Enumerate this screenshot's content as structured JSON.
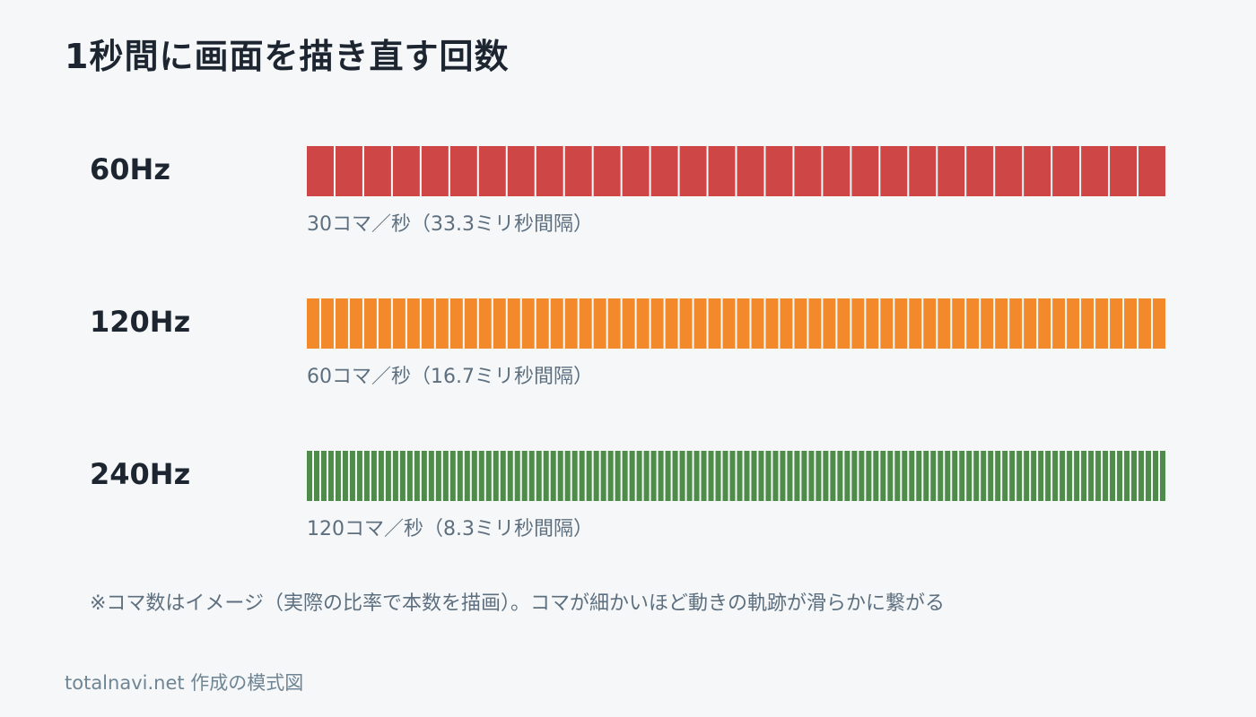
{
  "title": "1秒間に画面を描き直す回数",
  "rows": [
    {
      "label": "60Hz",
      "frames": 30,
      "color": "#cf4647",
      "caption": "30コマ／秒（33.3ミリ秒間隔）"
    },
    {
      "label": "120Hz",
      "frames": 60,
      "color": "#f28a2c",
      "caption": "60コマ／秒（16.7ミリ秒間隔）"
    },
    {
      "label": "240Hz",
      "frames": 120,
      "color": "#4e8c4a",
      "caption": "120コマ／秒（8.3ミリ秒間隔）"
    }
  ],
  "note": "※コマ数はイメージ（実際の比率で本数を描画）。コマが細かいほど動きの軌跡が滑らかに繋がる",
  "credit": "totalnavi.net 作成の模式図"
}
